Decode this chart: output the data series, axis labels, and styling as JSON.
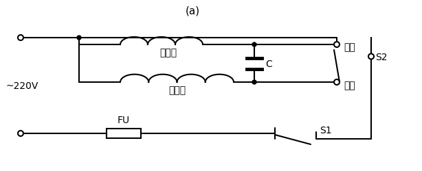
{
  "bg_color": "#ffffff",
  "line_color": "#000000",
  "title": "(a)",
  "label_220v": "~220V",
  "label_fu": "FU",
  "label_s1": "S1",
  "label_s2": "S2",
  "label_main": "主绕组",
  "label_aux": "副绕组",
  "label_cap": "C",
  "label_fwd": "正转",
  "label_rev": "反转",
  "figsize": [
    6.14,
    2.51
  ],
  "dpi": 100
}
